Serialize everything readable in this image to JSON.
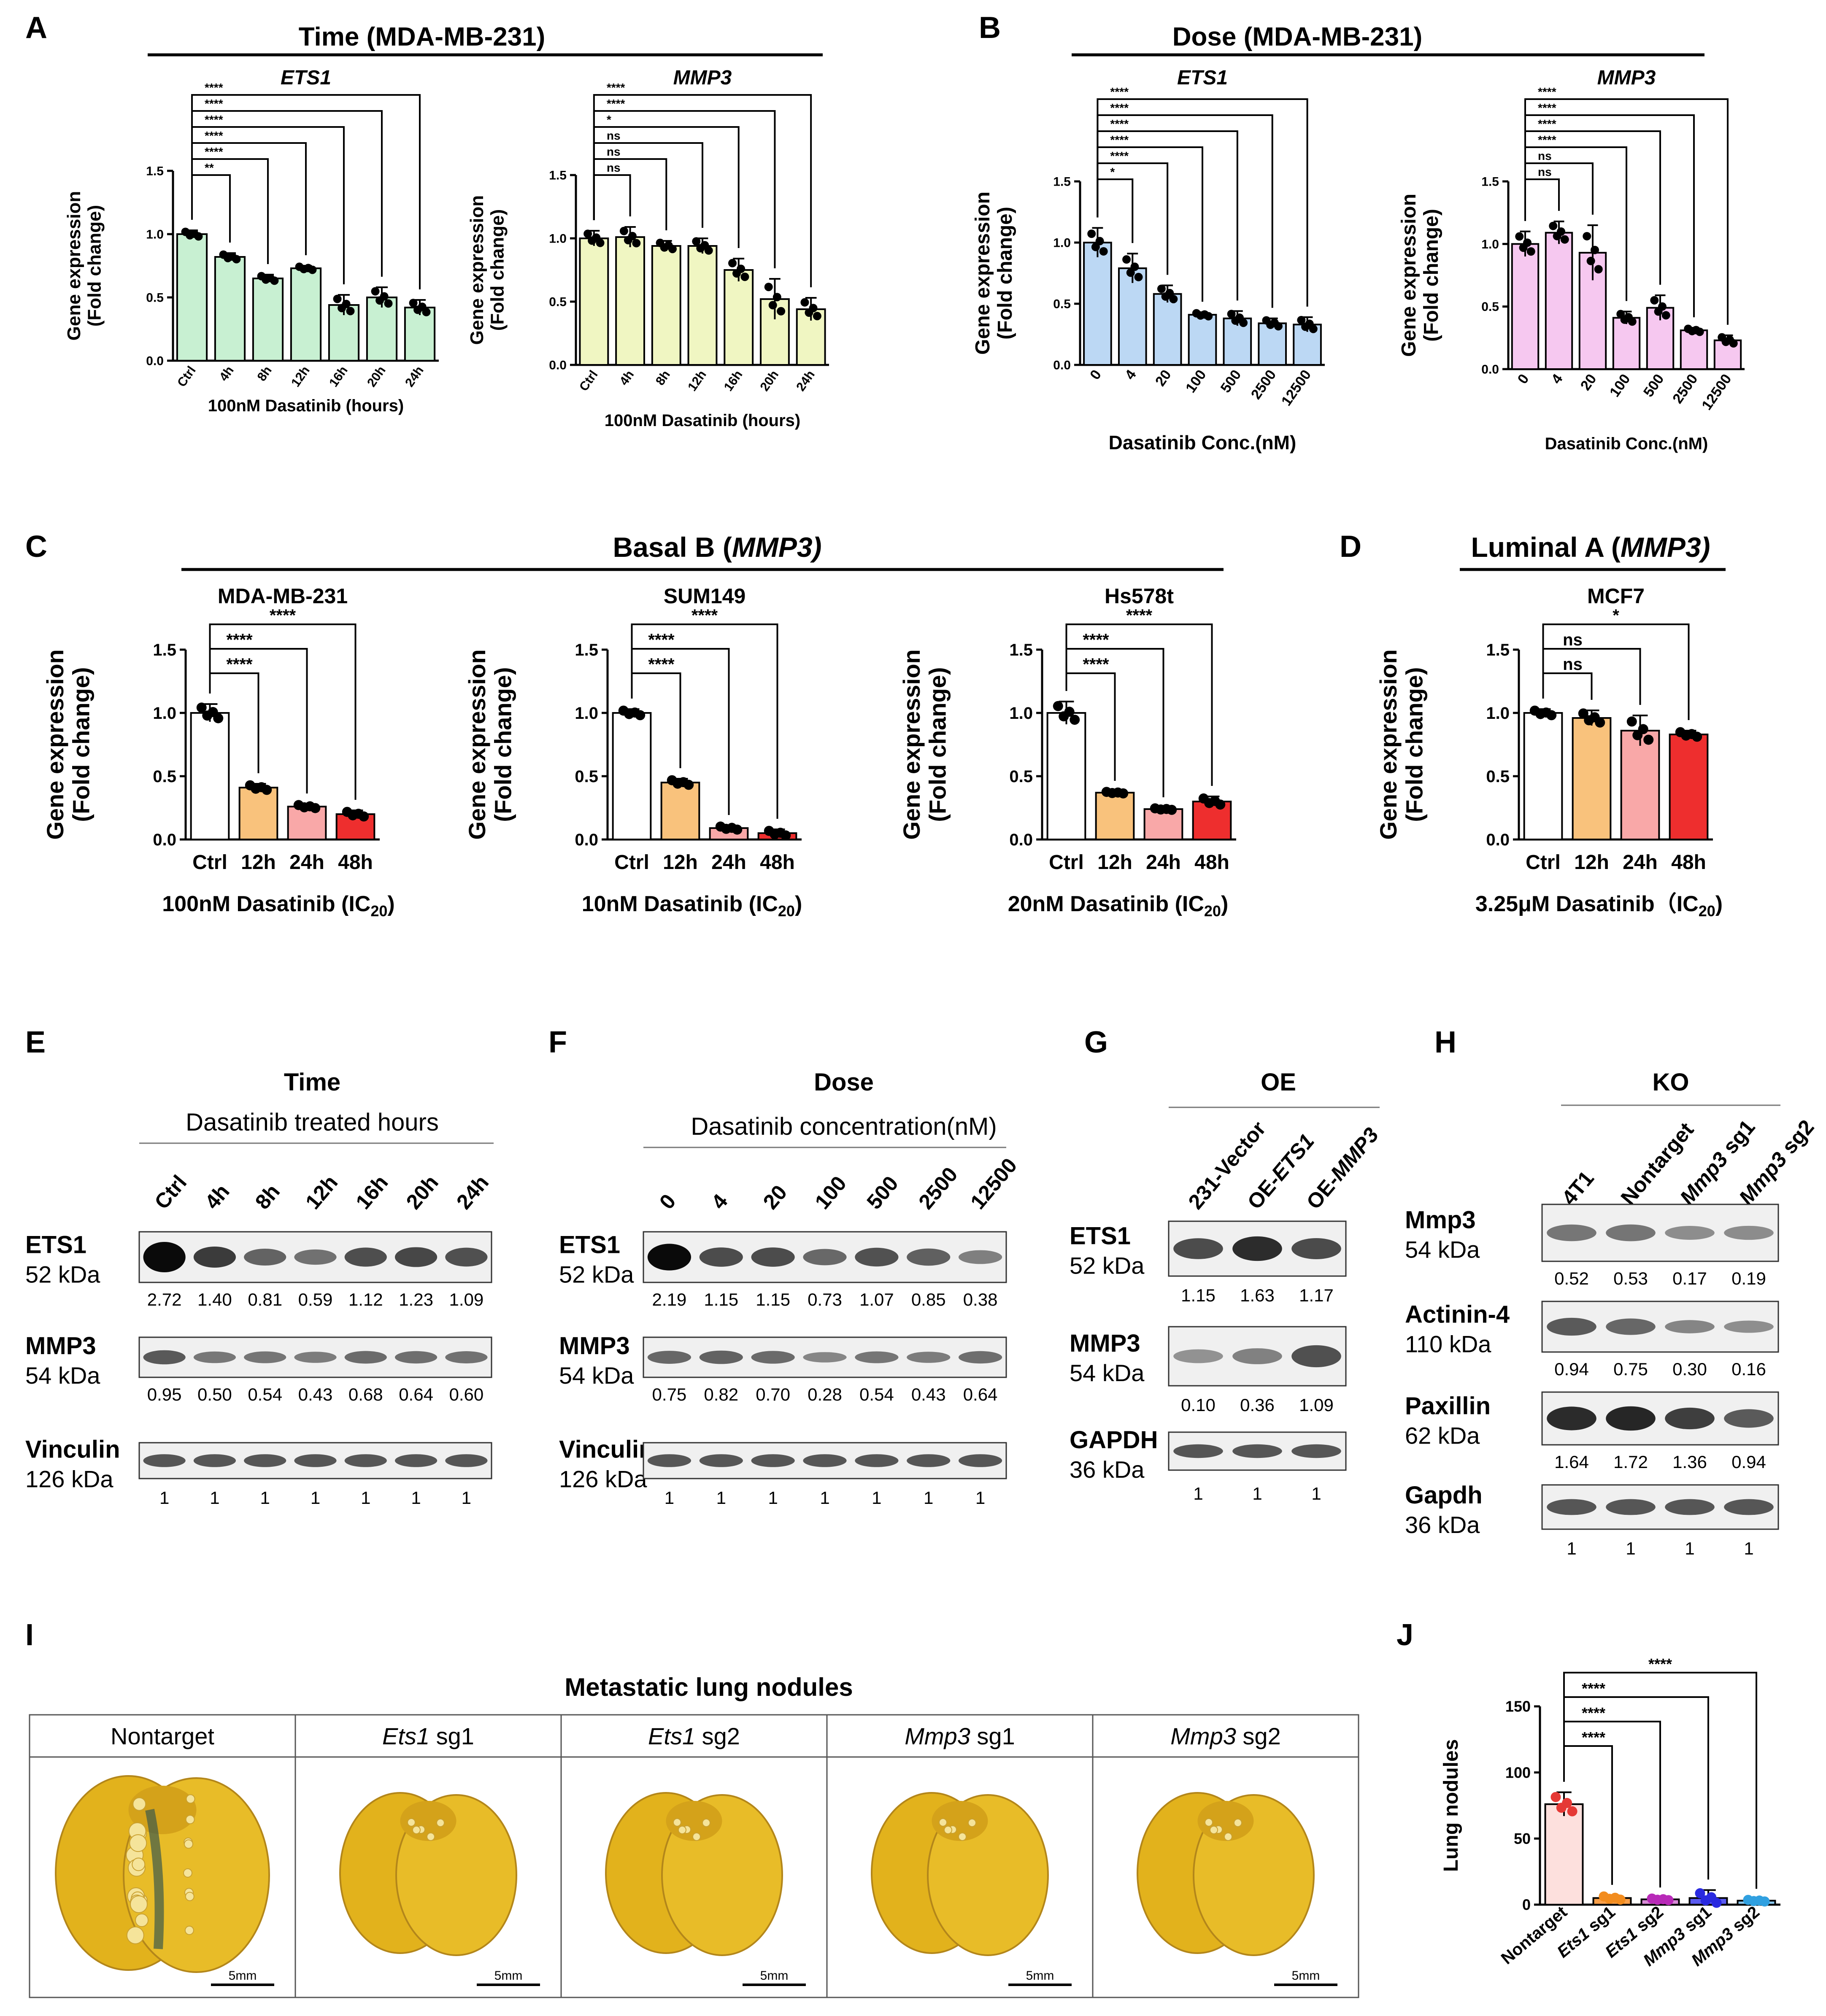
{
  "chart_data": [
    {
      "panel": "A",
      "type": "bar",
      "group_title": "Time (MDA-MB-231)",
      "title": "ETS1",
      "title_italic": true,
      "categories": [
        "Ctrl",
        "4h",
        "8h",
        "12h",
        "16h",
        "20h",
        "24h"
      ],
      "values": [
        1.0,
        0.82,
        0.65,
        0.73,
        0.44,
        0.5,
        0.42
      ],
      "errors": [
        0.03,
        0.03,
        0.03,
        0.02,
        0.08,
        0.08,
        0.06
      ],
      "xlabel": "100nM Dasatinib (hours)",
      "ylabel": [
        "Gene expression",
        "(Fold change)"
      ],
      "ylim": [
        0,
        1.5
      ],
      "yticks": [
        "0.0",
        "0.5",
        "1.0",
        "1.5"
      ],
      "color": "#c8f0d2",
      "significance": [
        "**",
        "****",
        "****",
        "****",
        "****",
        "****"
      ]
    },
    {
      "panel": "A2",
      "type": "bar",
      "title": "MMP3",
      "title_italic": true,
      "categories": [
        "Ctrl",
        "4h",
        "8h",
        "12h",
        "16h",
        "20h",
        "24h"
      ],
      "values": [
        1.0,
        1.01,
        0.94,
        0.94,
        0.75,
        0.52,
        0.44
      ],
      "errors": [
        0.06,
        0.08,
        0.04,
        0.06,
        0.09,
        0.16,
        0.09
      ],
      "xlabel": "100nM Dasatinib (hours)",
      "ylabel": [
        "Gene expression",
        "(Fold change)"
      ],
      "ylim": [
        0,
        1.5
      ],
      "yticks": [
        "0.0",
        "0.5",
        "1.0",
        "1.5"
      ],
      "color": "#f0f6c2",
      "significance": [
        "ns",
        "ns",
        "ns",
        "*",
        "****",
        "****"
      ]
    },
    {
      "panel": "B",
      "type": "bar",
      "group_title": "Dose (MDA-MB-231)",
      "title": "ETS1",
      "title_italic": true,
      "categories": [
        "0",
        "4",
        "20",
        "100",
        "500",
        "2500",
        "12500"
      ],
      "values": [
        1.0,
        0.79,
        0.58,
        0.41,
        0.38,
        0.34,
        0.33
      ],
      "errors": [
        0.12,
        0.12,
        0.07,
        0.02,
        0.06,
        0.04,
        0.06
      ],
      "xlabel": "Dasatinib Conc.(nM)",
      "ylabel": [
        "Gene expression",
        "(Fold change)"
      ],
      "ylim": [
        0,
        1.5
      ],
      "yticks": [
        "0.0",
        "0.5",
        "1.0",
        "1.5"
      ],
      "color": "#bcd8f4",
      "significance": [
        "*",
        "****",
        "****",
        "****",
        "****",
        "****"
      ]
    },
    {
      "panel": "B2",
      "type": "bar",
      "title": "MMP3",
      "title_italic": true,
      "categories": [
        "0",
        "4",
        "20",
        "100",
        "500",
        "2500",
        "12500"
      ],
      "values": [
        1.0,
        1.09,
        0.93,
        0.41,
        0.49,
        0.31,
        0.23
      ],
      "errors": [
        0.1,
        0.09,
        0.22,
        0.05,
        0.1,
        0.02,
        0.04
      ],
      "xlabel": "Dasatinib Conc.(nM)",
      "ylabel": [
        "Gene expression",
        "(Fold change)"
      ],
      "ylim": [
        0,
        1.5
      ],
      "yticks": [
        "0.0",
        "0.5",
        "1.0",
        "1.5"
      ],
      "color": "#f6c8f0",
      "significance": [
        "ns",
        "ns",
        "****",
        "****",
        "****",
        "****"
      ]
    },
    {
      "panel": "C",
      "type": "bar",
      "group_title": "Basal B (MMP3)",
      "title": "MDA-MB-231",
      "title_italic": false,
      "categories": [
        "Ctrl",
        "12h",
        "24h",
        "48h"
      ],
      "values": [
        1.0,
        0.41,
        0.26,
        0.2
      ],
      "errors": [
        0.07,
        0.03,
        0.02,
        0.03
      ],
      "xlabel": "100nM Dasatinib (IC20)",
      "ylabel": [
        "Gene expression",
        "(Fold change)"
      ],
      "ylim": [
        0,
        1.5
      ],
      "yticks": [
        "0.0",
        "0.5",
        "1.0",
        "1.5"
      ],
      "colors": [
        "#ffffff",
        "#f9c27c",
        "#f9a8a8",
        "#ee2e2e"
      ],
      "significance": [
        "****",
        "****",
        "****"
      ]
    },
    {
      "panel": "C2",
      "type": "bar",
      "title": "SUM149",
      "title_italic": false,
      "categories": [
        "Ctrl",
        "12h",
        "24h",
        "48h"
      ],
      "values": [
        1.0,
        0.45,
        0.09,
        0.05
      ],
      "errors": [
        0.03,
        0.03,
        0.02,
        0.03
      ],
      "xlabel": "10nM Dasatinib (IC20)",
      "ylabel": [
        "Gene expression",
        "(Fold change)"
      ],
      "ylim": [
        0,
        1.5
      ],
      "yticks": [
        "0.0",
        "0.5",
        "1.0",
        "1.5"
      ],
      "colors": [
        "#ffffff",
        "#f9c27c",
        "#f9a8a8",
        "#ee2e2e"
      ],
      "significance": [
        "****",
        "****",
        "****"
      ]
    },
    {
      "panel": "C3",
      "type": "bar",
      "title": "Hs578t",
      "title_italic": false,
      "categories": [
        "Ctrl",
        "12h",
        "24h",
        "48h"
      ],
      "values": [
        1.0,
        0.37,
        0.24,
        0.3
      ],
      "errors": [
        0.09,
        0.01,
        0.01,
        0.04
      ],
      "xlabel": "20nM Dasatinib (IC20)",
      "ylabel": [
        "Gene expression",
        "(Fold change)"
      ],
      "ylim": [
        0,
        1.5
      ],
      "yticks": [
        "0.0",
        "0.5",
        "1.0",
        "1.5"
      ],
      "colors": [
        "#ffffff",
        "#f9c27c",
        "#f9a8a8",
        "#ee2e2e"
      ],
      "significance": [
        "****",
        "****",
        "****"
      ]
    },
    {
      "panel": "D",
      "type": "bar",
      "group_title": "Luminal A (MMP3)",
      "title": "MCF7",
      "title_italic": false,
      "categories": [
        "Ctrl",
        "12h",
        "24h",
        "48h"
      ],
      "values": [
        1.0,
        0.96,
        0.86,
        0.83
      ],
      "errors": [
        0.03,
        0.06,
        0.12,
        0.03
      ],
      "xlabel": "3.25μM Dasatinib（IC20)",
      "ylabel": [
        "Gene expression",
        "(Fold change)"
      ],
      "ylim": [
        0,
        1.5
      ],
      "yticks": [
        "0.0",
        "0.5",
        "1.0",
        "1.5"
      ],
      "colors": [
        "#ffffff",
        "#f9c27c",
        "#f9a8a8",
        "#ee2e2e"
      ],
      "significance": [
        "ns",
        "ns",
        "*"
      ]
    },
    {
      "panel": "J",
      "type": "bar",
      "title": "",
      "categories": [
        "Nontarget",
        "Ets1 sg1",
        "Ets1 sg2",
        "Mmp3 sg1",
        "Mmp3 sg2"
      ],
      "values": [
        76,
        5,
        4,
        5,
        3
      ],
      "errors": [
        9,
        2,
        1,
        6,
        1
      ],
      "xlabel": "",
      "ylabel": [
        "Lung nodules"
      ],
      "ylim": [
        0,
        150
      ],
      "yticks": [
        "0",
        "50",
        "100",
        "150"
      ],
      "colors": [
        "#fde0dd",
        "#f9a04a",
        "#d88ad8",
        "#5a5af0",
        "#8ac8f0"
      ],
      "dot_colors": [
        "#e53935",
        "#f28c1e",
        "#b82ab8",
        "#2a2ae0",
        "#30a0e0"
      ],
      "significance": [
        "****",
        "****",
        "****",
        "****"
      ]
    }
  ],
  "labels": {
    "A": "A",
    "B": "B",
    "C": "C",
    "D": "D",
    "E": "E",
    "F": "F",
    "G": "G",
    "H": "H",
    "I": "I",
    "J": "J"
  },
  "intervals": {
    "C": "100nM Dasatinib (IC",
    "C_sub": "20",
    "C_end": ")",
    "C2": "10nM Dasatinib (IC",
    "C2_sub": "20",
    "C2_end": ")",
    "C3": "20nM Dasatinib (IC",
    "C3_sub": "20",
    "C3_end": ")",
    "D": "3.25μM Dasatinib（IC",
    "D_sub": "20",
    "D_end": ")",
    "basalB_prefix": "Basal B (",
    "basalB_gene": "MMP3)",
    "lumA_prefix": "Luminal A (",
    "lumA_gene": "MMP3)"
  },
  "blots": {
    "E": {
      "title": "Time",
      "subtitle": "Dasatinib treated hours",
      "lanes": [
        "Ctrl",
        "4h",
        "8h",
        "12h",
        "16h",
        "20h",
        "24h"
      ],
      "rows": [
        {
          "name": "ETS1",
          "kda": "52 kDa",
          "values": [
            "2.72",
            "1.40",
            "0.81",
            "0.59",
            "1.12",
            "1.23",
            "1.09"
          ]
        },
        {
          "name": "MMP3",
          "kda": "54 kDa",
          "values": [
            "0.95",
            "0.50",
            "0.54",
            "0.43",
            "0.68",
            "0.64",
            "0.60"
          ]
        },
        {
          "name": "Vinculin",
          "kda": "126 kDa",
          "values": [
            "1",
            "1",
            "1",
            "1",
            "1",
            "1",
            "1"
          ]
        }
      ]
    },
    "F": {
      "title": "Dose",
      "subtitle": "Dasatinib concentration(nM)",
      "lanes": [
        "0",
        "4",
        "20",
        "100",
        "500",
        "2500",
        "12500"
      ],
      "rows": [
        {
          "name": "ETS1",
          "kda": "52 kDa",
          "values": [
            "2.19",
            "1.15",
            "1.15",
            "0.73",
            "1.07",
            "0.85",
            "0.38"
          ]
        },
        {
          "name": "MMP3",
          "kda": "54 kDa",
          "values": [
            "0.75",
            "0.82",
            "0.70",
            "0.28",
            "0.54",
            "0.43",
            "0.64"
          ]
        },
        {
          "name": "Vinculin",
          "kda": "126 kDa",
          "values": [
            "1",
            "1",
            "1",
            "1",
            "1",
            "1",
            "1"
          ]
        }
      ]
    },
    "G": {
      "title": "OE",
      "lanes": [
        "231-Vector",
        "OE-ETS1",
        "OE-MMP3"
      ],
      "rows": [
        {
          "name": "ETS1",
          "kda": "52 kDa",
          "values": [
            "1.15",
            "1.63",
            "1.17"
          ]
        },
        {
          "name": "MMP3",
          "kda": "54 kDa",
          "values": [
            "0.10",
            "0.36",
            "1.09"
          ]
        },
        {
          "name": "GAPDH",
          "kda": "36 kDa",
          "values": [
            "1",
            "1",
            "1"
          ]
        }
      ]
    },
    "H": {
      "title": "KO",
      "lanes": [
        "4T1",
        "Nontarget",
        "Mmp3 sg1",
        "Mmp3 sg2"
      ],
      "rows": [
        {
          "name": "Mmp3",
          "kda": "54 kDa",
          "values": [
            "0.52",
            "0.53",
            "0.17",
            "0.19"
          ]
        },
        {
          "name": "Actinin-4",
          "kda": "110 kDa",
          "values": [
            "0.94",
            "0.75",
            "0.30",
            "0.16"
          ]
        },
        {
          "name": "Paxillin",
          "kda": "62 kDa",
          "values": [
            "1.64",
            "1.72",
            "1.36",
            "0.94"
          ]
        },
        {
          "name": "Gapdh",
          "kda": "36 kDa",
          "values": [
            "1",
            "1",
            "1",
            "1"
          ]
        }
      ]
    }
  },
  "lungs": {
    "title": "Metastatic lung nodules",
    "groups": [
      "Nontarget",
      "Ets1 sg1",
      "Ets1 sg2",
      "Mmp3 sg1",
      "Mmp3 sg2"
    ],
    "scale": "5mm"
  }
}
